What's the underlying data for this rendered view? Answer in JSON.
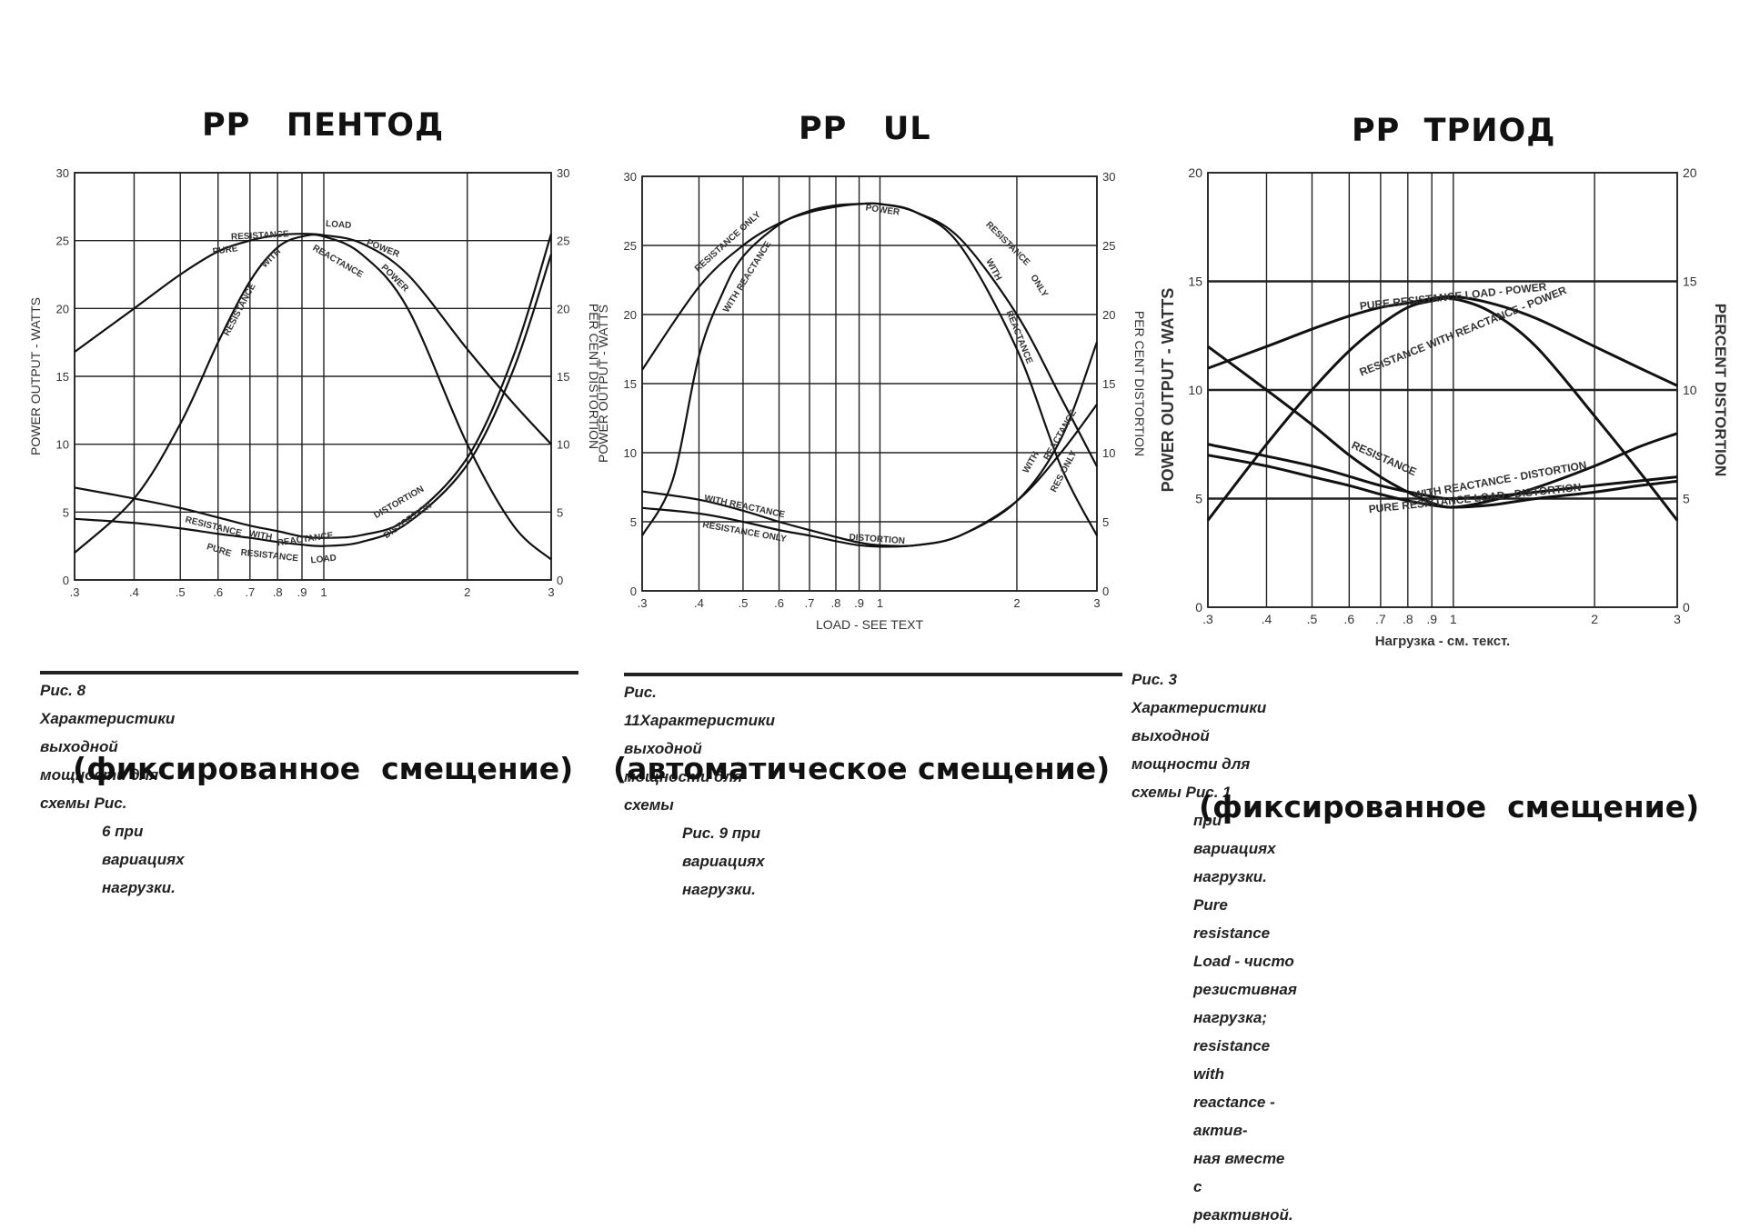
{
  "panels": [
    {
      "title": "PP   ПЕНТОД",
      "caption": [
        "Рис. 8  Характеристики выходной мощности для схемы Рис.",
        "6 при вариациях нагрузки."
      ],
      "bias": "(фиксированное  смещение)"
    },
    {
      "title": "PP   UL",
      "caption": [
        "Рис. 11Характеристики выходной мощности для схемы",
        "Рис. 9 при вариациях нагрузки."
      ],
      "bias": "(автоматическое смещение)"
    },
    {
      "title": "PP  ТРИОД",
      "caption": [
        "Рис. 3  Характеристики выходной мощности для схемы Рис. 1",
        "при вариациях нагрузки. Pure resistance Load - чисто",
        "резистивная нагрузка; resistance with reactance - актив-",
        "ная вместе с реактивной."
      ],
      "bias": "(фиксированное  смещение)"
    }
  ],
  "chart_data": [
    {
      "type": "line",
      "title": "PP   ПЕНТОД",
      "ylabel": "POWER OUTPUT - WATTS",
      "y2label": "PER CENT DISTORTION",
      "xlabel": "",
      "xscale": "log",
      "xlim": [
        0.3,
        3
      ],
      "ylim": [
        0,
        30
      ],
      "y2lim": [
        0,
        30
      ],
      "grid": true,
      "xticks": [
        0.3,
        0.4,
        0.5,
        0.6,
        0.7,
        0.8,
        0.9,
        1,
        2,
        3
      ],
      "xtick_labels": [
        ".3",
        ".4",
        ".5",
        ".6",
        ".7",
        ".8",
        ".9",
        "1",
        "2",
        "3"
      ],
      "yticks": [
        0,
        5,
        10,
        15,
        20,
        25,
        30
      ],
      "ytick_labels": [
        "0",
        "5",
        "10",
        "15",
        "20",
        "25",
        "30"
      ],
      "y2tick_labels": [
        "0",
        "5",
        "10",
        "15",
        "20",
        "25",
        "30"
      ],
      "series": [
        {
          "name": "PURE RESISTANCE LOAD - POWER",
          "axis": "left",
          "x": [
            0.3,
            0.4,
            0.5,
            0.6,
            0.7,
            0.8,
            0.9,
            1.0,
            1.2,
            1.5,
            2.0,
            2.5,
            3.0
          ],
          "y": [
            16.8,
            20.0,
            22.5,
            24.2,
            25.0,
            25.4,
            25.5,
            25.4,
            24.8,
            22.5,
            17.0,
            13.0,
            10.0
          ]
        },
        {
          "name": "RESISTANCE WITH REACTANCE - POWER",
          "axis": "left",
          "x": [
            0.3,
            0.4,
            0.5,
            0.6,
            0.7,
            0.8,
            0.9,
            1.0,
            1.2,
            1.5,
            2.0,
            2.5,
            3.0
          ],
          "y": [
            2.0,
            6.0,
            11.5,
            17.5,
            22.0,
            24.5,
            25.3,
            25.3,
            24.0,
            20.0,
            10.0,
            4.0,
            1.5
          ]
        },
        {
          "name": "RESISTANCE WITH REACTANCE - DISTORTION",
          "axis": "right",
          "x": [
            0.3,
            0.4,
            0.5,
            0.6,
            0.7,
            0.8,
            0.9,
            1.0,
            1.2,
            1.5,
            2.0,
            2.5,
            3.0
          ],
          "y": [
            6.8,
            6.0,
            5.3,
            4.6,
            4.0,
            3.6,
            3.2,
            3.1,
            3.3,
            4.5,
            9.0,
            16.5,
            25.5
          ]
        },
        {
          "name": "PURE RESISTANCE LOAD - DISTORTION",
          "axis": "right",
          "x": [
            0.3,
            0.4,
            0.5,
            0.6,
            0.7,
            0.8,
            0.9,
            1.0,
            1.2,
            1.5,
            2.0,
            2.5,
            3.0
          ],
          "y": [
            4.5,
            4.2,
            3.8,
            3.4,
            3.1,
            2.8,
            2.6,
            2.5,
            2.8,
            4.2,
            8.5,
            15.5,
            24.0
          ]
        }
      ],
      "annotations": [
        "PURE",
        "RESISTANCE",
        "LOAD",
        "POWER",
        "RESISTANCE",
        "WITH",
        "REACTANCE",
        "DISTORTION"
      ]
    },
    {
      "type": "line",
      "title": "PP   UL",
      "ylabel": "POWER OUTPUT - WATTS",
      "y2label": "PER CENT DISTORTION",
      "xlabel": "LOAD - SEE TEXT",
      "xscale": "log",
      "xlim": [
        0.3,
        3
      ],
      "ylim": [
        0,
        30
      ],
      "y2lim": [
        0,
        30
      ],
      "grid": true,
      "xticks": [
        0.3,
        0.4,
        0.5,
        0.6,
        0.7,
        0.8,
        0.9,
        1,
        2,
        3
      ],
      "xtick_labels": [
        ".3",
        ".4",
        ".5",
        ".6",
        ".7",
        ".8",
        ".9",
        "1",
        "2",
        "3"
      ],
      "yticks": [
        0,
        5,
        10,
        15,
        20,
        25,
        30
      ],
      "ytick_labels": [
        "0",
        "5",
        "10",
        "15",
        "20",
        "25",
        "30"
      ],
      "y2tick_labels": [
        "0",
        "5",
        "10",
        "15",
        "20",
        "25",
        "30"
      ],
      "series": [
        {
          "name": "RESISTANCE ONLY - POWER",
          "axis": "left",
          "x": [
            0.3,
            0.4,
            0.5,
            0.6,
            0.7,
            0.8,
            0.9,
            1.0,
            1.2,
            1.5,
            2.0,
            2.5,
            3.0
          ],
          "y": [
            16.0,
            22.0,
            25.0,
            26.6,
            27.4,
            27.8,
            28.0,
            28.0,
            27.4,
            25.5,
            20.0,
            14.0,
            9.0
          ]
        },
        {
          "name": "WITH REACTANCE - POWER",
          "axis": "left",
          "x": [
            0.3,
            0.35,
            0.4,
            0.45,
            0.5,
            0.6,
            0.7,
            0.8,
            0.9,
            1.0,
            1.2,
            1.5,
            2.0,
            2.5,
            3.0
          ],
          "y": [
            4.0,
            8.0,
            17.0,
            21.5,
            24.2,
            26.5,
            27.5,
            27.9,
            28.0,
            28.0,
            27.4,
            25.0,
            17.5,
            9.0,
            4.0
          ]
        },
        {
          "name": "WITH REACTANCE - DISTORTION",
          "axis": "right",
          "x": [
            0.3,
            0.4,
            0.5,
            0.6,
            0.7,
            0.8,
            0.9,
            1.0,
            1.2,
            1.5,
            2.0,
            2.5,
            3.0
          ],
          "y": [
            7.2,
            6.6,
            5.8,
            5.0,
            4.4,
            3.9,
            3.5,
            3.3,
            3.3,
            4.0,
            6.5,
            11.0,
            18.0
          ]
        },
        {
          "name": "RESISTANCE ONLY - DISTORTION",
          "axis": "right",
          "x": [
            0.3,
            0.4,
            0.5,
            0.6,
            0.7,
            0.8,
            0.9,
            1.0,
            1.2,
            1.5,
            2.0,
            2.5,
            3.0
          ],
          "y": [
            6.0,
            5.6,
            5.0,
            4.4,
            4.0,
            3.6,
            3.3,
            3.2,
            3.3,
            4.0,
            6.5,
            10.0,
            13.5
          ]
        }
      ],
      "annotations": [
        "POWER",
        "RESISTANCE ONLY",
        "WITH REACTANCE",
        "DISTORTION",
        "RESISTANCE ONLY",
        "WITH REACTANCE"
      ]
    },
    {
      "type": "line",
      "title": "PP  ТРИОД",
      "ylabel": "POWER OUTPUT - WATTS",
      "y2label": "PERCENT DISTORTION",
      "xlabel": "Нагрузка - см. текст.",
      "xscale": "log",
      "xlim": [
        0.3,
        3
      ],
      "ylim": [
        0,
        20
      ],
      "y2lim": [
        0,
        20
      ],
      "grid": true,
      "xticks": [
        0.3,
        0.4,
        0.5,
        0.6,
        0.7,
        0.8,
        0.9,
        1,
        2,
        3
      ],
      "xtick_labels": [
        ".3",
        ".4",
        ".5",
        ".6",
        ".7",
        ".8",
        ".9",
        "1",
        "2",
        "3"
      ],
      "yticks": [
        0,
        5,
        10,
        15,
        20
      ],
      "ytick_labels": [
        "0",
        "5",
        "10",
        "15",
        "20"
      ],
      "y2tick_labels": [
        "0",
        "5",
        "10",
        "15",
        "20"
      ],
      "series": [
        {
          "name": "PURE RESISTANCE LOAD - POWER",
          "axis": "left",
          "x": [
            0.3,
            0.4,
            0.5,
            0.6,
            0.7,
            0.8,
            0.9,
            1.0,
            1.2,
            1.5,
            2.0,
            2.5,
            3.0
          ],
          "y": [
            11.0,
            12.0,
            12.8,
            13.4,
            13.8,
            14.0,
            14.2,
            14.3,
            14.0,
            13.3,
            12.0,
            11.0,
            10.2
          ]
        },
        {
          "name": "RESISTANCE WITH REACTANCE - POWER",
          "axis": "left",
          "x": [
            0.3,
            0.4,
            0.5,
            0.6,
            0.7,
            0.8,
            0.9,
            1.0,
            1.2,
            1.5,
            2.0,
            2.5,
            3.0
          ],
          "y": [
            4.0,
            7.5,
            10.0,
            11.8,
            13.0,
            13.8,
            14.1,
            14.2,
            13.6,
            12.0,
            8.8,
            6.2,
            4.0
          ]
        },
        {
          "name": "RESISTANCE WITH REACTANCE - DISTORTION",
          "axis": "right",
          "x": [
            0.3,
            0.4,
            0.5,
            0.6,
            0.7,
            0.8,
            0.9,
            1.0,
            1.2,
            1.5,
            2.0,
            2.5,
            3.0
          ],
          "y": [
            12.0,
            10.0,
            8.4,
            7.0,
            6.0,
            5.3,
            4.8,
            4.6,
            4.9,
            5.5,
            6.5,
            7.4,
            8.0
          ]
        },
        {
          "name": "PURE RESISTANCE LOAD - DISTORTION",
          "axis": "right",
          "x": [
            0.3,
            0.4,
            0.5,
            0.6,
            0.7,
            0.8,
            0.9,
            1.0,
            1.2,
            1.5,
            2.0,
            2.5,
            3.0
          ],
          "y": [
            7.0,
            6.5,
            6.0,
            5.6,
            5.2,
            4.9,
            4.7,
            4.6,
            4.7,
            5.0,
            5.3,
            5.6,
            5.8
          ]
        },
        {
          "name": "RESISTANCE WITH REACTANCE - DISTORTION (upper)",
          "axis": "right",
          "x": [
            0.3,
            0.5,
            0.7,
            0.9,
            1.0,
            1.2,
            1.5,
            2.0,
            3.0
          ],
          "y": [
            7.5,
            6.5,
            5.6,
            5.1,
            5.0,
            5.1,
            5.3,
            5.6,
            6.0
          ]
        }
      ],
      "annotations": [
        "PURE RESISTANCE LOAD - POWER",
        "RESISTANCE WITH REACTANCE - POWER",
        "RESISTANCE",
        "WITH REACTANCE - DISTORTION",
        "PURE RESISTANCE LOAD - DISTORTION"
      ]
    }
  ]
}
